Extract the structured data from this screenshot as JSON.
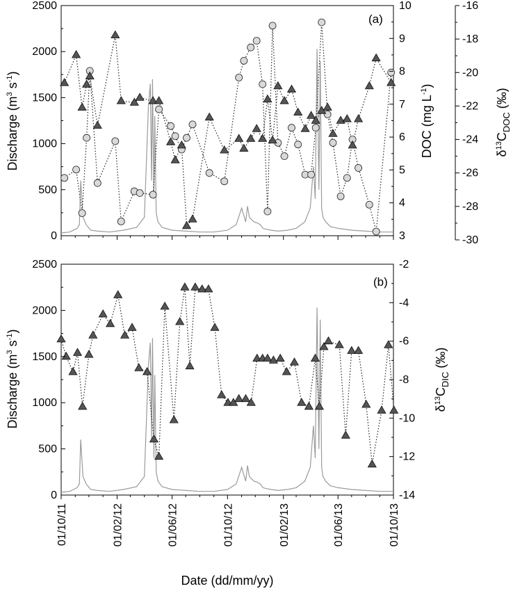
{
  "x_axis": {
    "title": "Date (dd/mm/yy)",
    "tick_labels": [
      "01/10/11",
      "01/02/12",
      "01/06/12",
      "01/10/12",
      "01/02/13",
      "01/06/13",
      "01/10/13"
    ]
  },
  "chart_data": [
    {
      "type": "line",
      "panel_label": "(a)",
      "left_axis": {
        "title": "Discharge (m³ s⁻¹)",
        "ylim": [
          0,
          2500
        ],
        "ticks": [
          "0",
          "500",
          "1000",
          "1500",
          "2000",
          "2500"
        ]
      },
      "right_axis_1": {
        "title": "DOC (mg L⁻¹)",
        "ylim": [
          3,
          10
        ],
        "ticks": [
          "3",
          "4",
          "5",
          "6",
          "7",
          "8",
          "9",
          "10"
        ]
      },
      "right_axis_2": {
        "title": "δ¹³C_DOC (‰)",
        "ylim": [
          -30,
          -16
        ],
        "ticks": [
          "-30",
          "-28",
          "-26",
          "-24",
          "-22",
          "-20",
          "-18",
          "-16"
        ]
      },
      "series": [
        {
          "marker": "triangle",
          "axis": "right_axis_1",
          "x": [
            "2011-10-08",
            "2011-11-03",
            "2011-11-16",
            "2011-11-26",
            "2011-12-03",
            "2011-12-20",
            "2012-01-28",
            "2012-02-10",
            "2012-03-10",
            "2012-03-22",
            "2012-04-20",
            "2012-05-03",
            "2012-05-29",
            "2012-06-08",
            "2012-06-22",
            "2012-07-03",
            "2012-07-16",
            "2012-08-22",
            "2012-09-24",
            "2012-10-26",
            "2012-11-06",
            "2012-11-21",
            "2012-12-04",
            "2012-12-17",
            "2012-12-28",
            "2013-01-08",
            "2013-01-20",
            "2013-02-03",
            "2013-02-19",
            "2013-03-05",
            "2013-03-21",
            "2013-04-03",
            "2013-04-13",
            "2013-04-26",
            "2013-05-09",
            "2013-05-21",
            "2013-06-07",
            "2013-06-21",
            "2013-07-03",
            "2013-07-16",
            "2013-08-09",
            "2013-08-24",
            "2013-09-26"
          ],
          "values": [
            7.65,
            8.5,
            6.9,
            7.6,
            7.85,
            6.35,
            9.1,
            7.1,
            7.05,
            7.2,
            7.1,
            7.1,
            5.85,
            5.3,
            5.75,
            3.3,
            3.5,
            6.6,
            5.6,
            5.95,
            5.65,
            5.95,
            6.25,
            5.95,
            7.15,
            5.9,
            7.55,
            7.1,
            7.45,
            6.75,
            6.25,
            6.65,
            6.5,
            6.8,
            6.9,
            6.1,
            6.5,
            6.55,
            5.75,
            6.55,
            7.55,
            8.4,
            7.65
          ]
        },
        {
          "marker": "circle",
          "axis": "right_axis_2",
          "x": [
            "2011-10-08",
            "2011-11-03",
            "2011-11-16",
            "2011-11-26",
            "2011-12-03",
            "2011-12-20",
            "2012-01-28",
            "2012-02-10",
            "2012-03-10",
            "2012-03-22",
            "2012-04-20",
            "2012-05-03",
            "2012-05-29",
            "2012-06-08",
            "2012-06-22",
            "2012-07-03",
            "2012-07-16",
            "2012-08-22",
            "2012-09-24",
            "2012-10-26",
            "2012-11-06",
            "2012-11-21",
            "2012-12-04",
            "2012-12-17",
            "2012-12-28",
            "2013-01-08",
            "2013-01-20",
            "2013-02-03",
            "2013-02-19",
            "2013-03-05",
            "2013-03-21",
            "2013-04-03",
            "2013-04-13",
            "2013-04-26",
            "2013-05-09",
            "2013-05-21",
            "2013-06-07",
            "2013-06-21",
            "2013-07-03",
            "2013-07-16",
            "2013-08-09",
            "2013-08-24",
            "2013-09-26"
          ],
          "values": [
            -26.3,
            -25.8,
            -28.4,
            -23.9,
            -19.9,
            -26.6,
            -24.1,
            -28.9,
            -27.1,
            -27.2,
            -27.3,
            -22.2,
            -23.2,
            -23.8,
            -24.6,
            -23.9,
            -23.1,
            -26.0,
            -26.5,
            -20.3,
            -19.3,
            -18.5,
            -18.1,
            -20.7,
            -28.3,
            -17.2,
            -24.2,
            -25.0,
            -23.3,
            -24.3,
            -26.1,
            -26.1,
            -23.3,
            -17.0,
            -22.5,
            -24.2,
            -27.4,
            -26.3,
            -24.0,
            -25.7,
            -27.9,
            -29.5,
            -20.0
          ]
        },
        {
          "name": "discharge",
          "axis": "left_axis",
          "x": [
            "2011-10-01",
            "2011-10-20",
            "2011-11-05",
            "2011-11-10",
            "2011-11-13",
            "2011-11-18",
            "2011-11-25",
            "2011-12-05",
            "2011-12-20",
            "2012-01-15",
            "2012-02-15",
            "2012-03-15",
            "2012-04-01",
            "2012-04-10",
            "2012-04-14",
            "2012-04-17",
            "2012-04-19",
            "2012-04-22",
            "2012-04-24",
            "2012-04-27",
            "2012-05-01",
            "2012-05-10",
            "2012-06-01",
            "2012-07-01",
            "2012-08-01",
            "2012-09-01",
            "2012-10-01",
            "2012-10-20",
            "2012-11-01",
            "2012-11-10",
            "2012-11-14",
            "2012-11-18",
            "2012-11-22",
            "2012-11-28",
            "2012-12-05",
            "2012-12-12",
            "2012-12-18",
            "2012-12-25",
            "2013-01-05",
            "2013-01-20",
            "2013-02-10",
            "2013-03-01",
            "2013-03-20",
            "2013-04-01",
            "2013-04-08",
            "2013-04-12",
            "2013-04-16",
            "2013-04-20",
            "2013-04-23",
            "2013-04-26",
            "2013-04-29",
            "2013-05-05",
            "2013-05-15",
            "2013-06-01",
            "2013-07-01",
            "2013-08-01",
            "2013-09-01",
            "2013-10-01"
          ],
          "values": [
            30,
            40,
            80,
            120,
            600,
            200,
            120,
            60,
            50,
            40,
            60,
            90,
            200,
            1400,
            1650,
            600,
            1700,
            400,
            1300,
            250,
            150,
            90,
            60,
            50,
            40,
            40,
            60,
            120,
            300,
            150,
            320,
            200,
            180,
            150,
            140,
            120,
            80,
            70,
            60,
            50,
            60,
            80,
            150,
            300,
            750,
            400,
            2030,
            500,
            1900,
            300,
            200,
            150,
            100,
            80,
            60,
            50,
            40,
            40
          ]
        }
      ]
    },
    {
      "type": "line",
      "panel_label": "(b)",
      "left_axis": {
        "title": "Discharge (m³ s⁻¹)",
        "ylim": [
          0,
          2500
        ],
        "ticks": [
          "0",
          "500",
          "1000",
          "1500",
          "2000",
          "2500"
        ]
      },
      "right_axis": {
        "title": "δ¹³C_DIC (‰)",
        "ylim": [
          -14,
          -2
        ],
        "ticks": [
          "-14",
          "-12",
          "-10",
          "-8",
          "-6",
          "-4",
          "-2"
        ]
      },
      "series": [
        {
          "marker": "triangle",
          "axis": "right_axis",
          "x": [
            "2011-10-01",
            "2011-10-12",
            "2011-10-27",
            "2011-11-06",
            "2011-11-17",
            "2011-12-01",
            "2011-12-10",
            "2012-01-01",
            "2012-01-17",
            "2012-02-03",
            "2012-02-18",
            "2012-03-05",
            "2012-03-20",
            "2012-04-07",
            "2012-04-22",
            "2012-05-03",
            "2012-05-16",
            "2012-06-05",
            "2012-06-18",
            "2012-06-29",
            "2012-07-10",
            "2012-07-22",
            "2012-08-06",
            "2012-08-20",
            "2012-09-03",
            "2012-09-18",
            "2012-10-02",
            "2012-10-14",
            "2012-10-26",
            "2012-11-10",
            "2012-11-22",
            "2012-12-05",
            "2012-12-17",
            "2012-12-28",
            "2013-01-10",
            "2013-01-25",
            "2013-02-08",
            "2013-02-25",
            "2013-03-13",
            "2013-03-29",
            "2013-04-12",
            "2013-04-21",
            "2013-05-01",
            "2013-05-11",
            "2013-06-04",
            "2013-06-18",
            "2013-07-01",
            "2013-07-16",
            "2013-08-02",
            "2013-08-15",
            "2013-09-05",
            "2013-09-20",
            "2013-10-02"
          ],
          "values": [
            -5.9,
            -6.8,
            -7.6,
            -6.6,
            -9.4,
            -6.7,
            -5.7,
            -4.6,
            -5.1,
            -3.6,
            -5.7,
            -5.3,
            -7.4,
            -7.6,
            -11.1,
            -12.0,
            -4.2,
            -10.1,
            -5.0,
            -3.2,
            -7.3,
            -3.2,
            -3.3,
            -3.3,
            -5.3,
            -8.8,
            -9.2,
            -9.2,
            -9.0,
            -9.0,
            -9.2,
            -6.9,
            -6.9,
            -6.9,
            -7.0,
            -6.9,
            -7.6,
            -7.1,
            -9.2,
            -9.4,
            -6.9,
            -9.4,
            -6.3,
            -6.0,
            -6.2,
            -10.9,
            -6.5,
            -6.5,
            -9.3,
            -12.4,
            -9.6,
            -6.2,
            -9.6
          ]
        },
        {
          "name": "discharge",
          "axis": "left_axis",
          "x": [
            "2011-10-01",
            "2011-10-20",
            "2011-11-05",
            "2011-11-10",
            "2011-11-13",
            "2011-11-18",
            "2011-11-25",
            "2011-12-05",
            "2011-12-20",
            "2012-01-15",
            "2012-02-15",
            "2012-03-15",
            "2012-04-01",
            "2012-04-10",
            "2012-04-14",
            "2012-04-17",
            "2012-04-19",
            "2012-04-22",
            "2012-04-24",
            "2012-04-27",
            "2012-05-01",
            "2012-05-10",
            "2012-06-01",
            "2012-07-01",
            "2012-08-01",
            "2012-09-01",
            "2012-10-01",
            "2012-10-20",
            "2012-11-01",
            "2012-11-10",
            "2012-11-14",
            "2012-11-18",
            "2012-11-22",
            "2012-11-28",
            "2012-12-05",
            "2012-12-12",
            "2012-12-18",
            "2012-12-25",
            "2013-01-05",
            "2013-01-20",
            "2013-02-10",
            "2013-03-01",
            "2013-03-20",
            "2013-04-01",
            "2013-04-08",
            "2013-04-12",
            "2013-04-16",
            "2013-04-20",
            "2013-04-23",
            "2013-04-26",
            "2013-04-29",
            "2013-05-05",
            "2013-05-15",
            "2013-06-01",
            "2013-07-01",
            "2013-08-01",
            "2013-09-01",
            "2013-10-01"
          ],
          "values": [
            30,
            40,
            80,
            120,
            600,
            200,
            120,
            60,
            50,
            40,
            60,
            90,
            200,
            1400,
            1650,
            600,
            1700,
            400,
            1300,
            250,
            150,
            90,
            60,
            50,
            40,
            40,
            60,
            120,
            300,
            150,
            320,
            200,
            180,
            150,
            140,
            120,
            80,
            70,
            60,
            50,
            60,
            80,
            150,
            300,
            750,
            400,
            2030,
            500,
            1900,
            300,
            200,
            150,
            100,
            80,
            60,
            50,
            40,
            40
          ]
        }
      ]
    }
  ]
}
